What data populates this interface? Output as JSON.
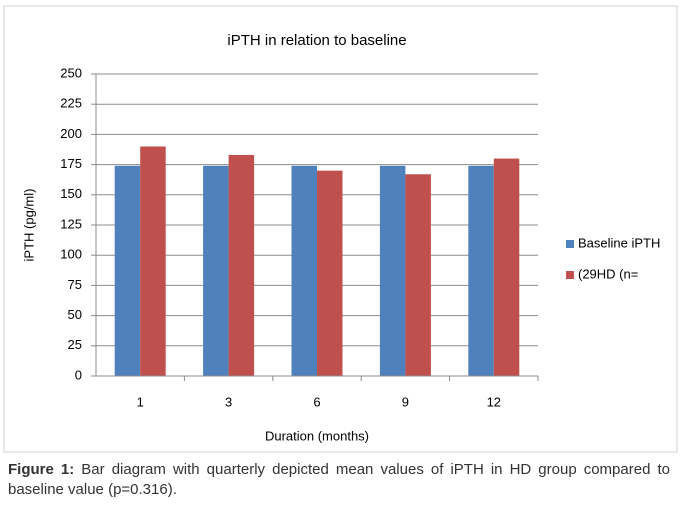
{
  "chart_data": {
    "type": "bar",
    "title": "iPTH in relation to baseline",
    "x_label": "Duration (months)",
    "y_label": "iPTH (pg/ml)",
    "categories": [
      "1",
      "3",
      "6",
      "9",
      "12"
    ],
    "series": [
      {
        "name": "Baseline iPTH",
        "color": "#4f81bd",
        "values": [
          174,
          174,
          174,
          174,
          174
        ]
      },
      {
        "name": "(29HD (n=",
        "color": "#c0504d",
        "values": [
          190,
          183,
          170,
          167,
          180
        ]
      }
    ],
    "ylim": [
      0,
      250
    ],
    "yticks": [
      0,
      25,
      50,
      75,
      100,
      125,
      150,
      175,
      200,
      225,
      250
    ],
    "grid": true,
    "legend": "right"
  },
  "caption": {
    "label": "Figure 1:",
    "text": "Bar diagram with quarterly depicted mean values of iPTH in HD group compared to baseline value (p=0.316)."
  }
}
